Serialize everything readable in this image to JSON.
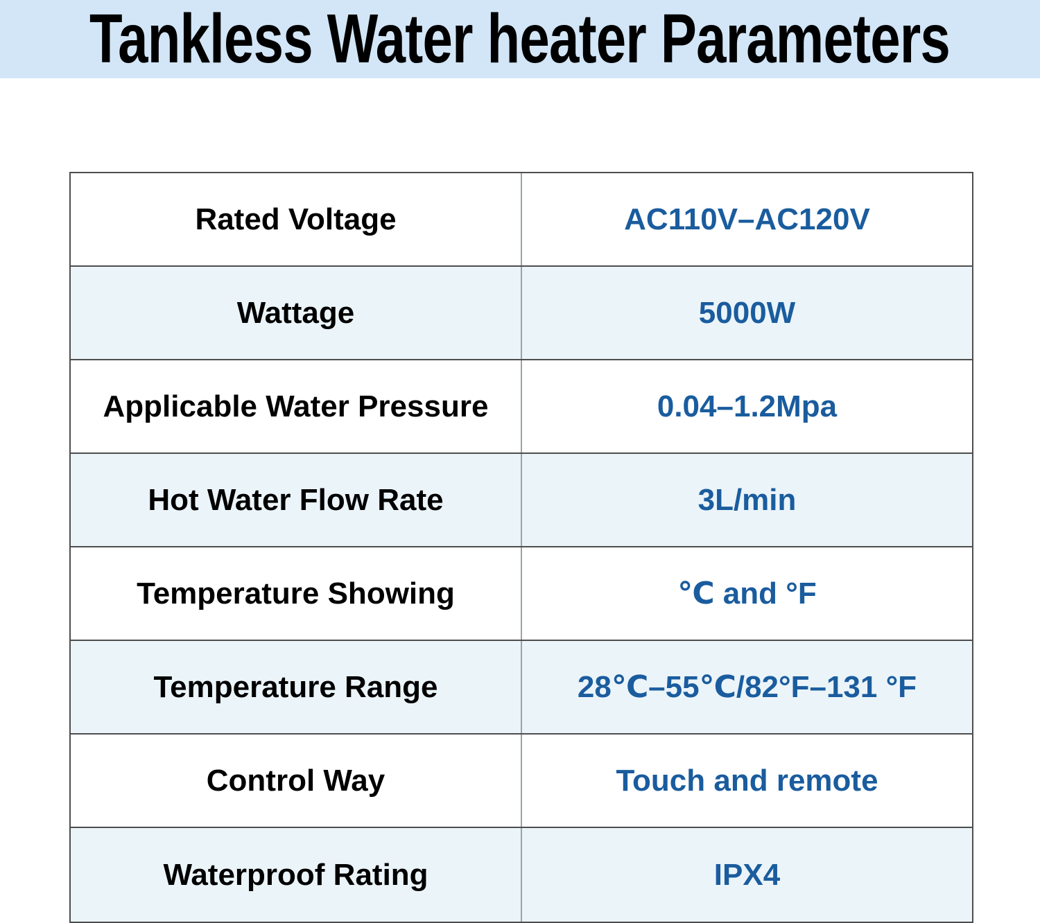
{
  "header": {
    "title": "Tankless Water heater Parameters",
    "band_color": "#d2e6f7"
  },
  "colors": {
    "label_text": "#000000",
    "value_text": "#1a5c9e",
    "row_bg": "#ffffff",
    "row_alt_bg": "#ebf4f9",
    "horizontal_border": "#4d4d4d",
    "vertical_border": "#9aa3a6"
  },
  "spec_table": {
    "rows": [
      {
        "label": "Rated Voltage",
        "value": "AC110V–AC120V"
      },
      {
        "label": "Wattage",
        "value": "5000W"
      },
      {
        "label": "Applicable Water Pressure",
        "value": "0.04–1.2Mpa"
      },
      {
        "label": "Hot Water Flow Rate",
        "value": "3L/min"
      },
      {
        "label": "Temperature Showing",
        "value": "℃ and °F"
      },
      {
        "label": "Temperature Range",
        "value": "28℃–55℃/82°F–131 °F"
      },
      {
        "label": "Control Way",
        "value": "Touch and remote"
      },
      {
        "label": "Waterproof Rating",
        "value": "IPX4"
      }
    ]
  }
}
